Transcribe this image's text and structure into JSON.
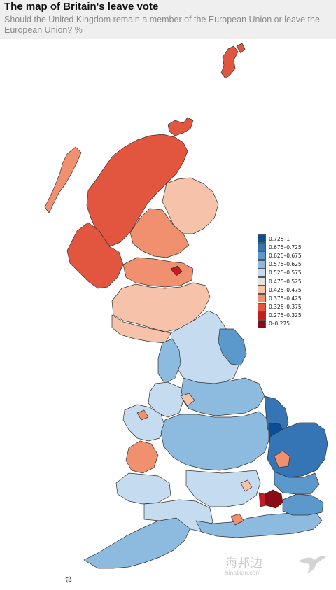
{
  "header": {
    "title": "The map of Britain's leave vote",
    "subtitle": "Should the United Kingdom remain a member of the European Union or leave the European Union? %"
  },
  "legend": [
    {
      "label": "0.725–1",
      "color": "#0a4f96"
    },
    {
      "label": "0.675–0.725",
      "color": "#3575b5"
    },
    {
      "label": "0.625–0.675",
      "color": "#5b98cc"
    },
    {
      "label": "0.575–0.625",
      "color": "#8dbbe0"
    },
    {
      "label": "0.525–0.575",
      "color": "#c5dcf0"
    },
    {
      "label": "0.475–0.525",
      "color": "#e2e2e2"
    },
    {
      "label": "0.425–0.475",
      "color": "#f7c2aa"
    },
    {
      "label": "0.375–0.425",
      "color": "#f0906e"
    },
    {
      "label": "0.325–0.375",
      "color": "#e2553f"
    },
    {
      "label": "0.275–0.325",
      "color": "#c61a22"
    },
    {
      "label": "0–0.275",
      "color": "#8b0a14"
    }
  ],
  "watermark": {
    "chinese": "海邦边",
    "url": "hinabian.com"
  }
}
